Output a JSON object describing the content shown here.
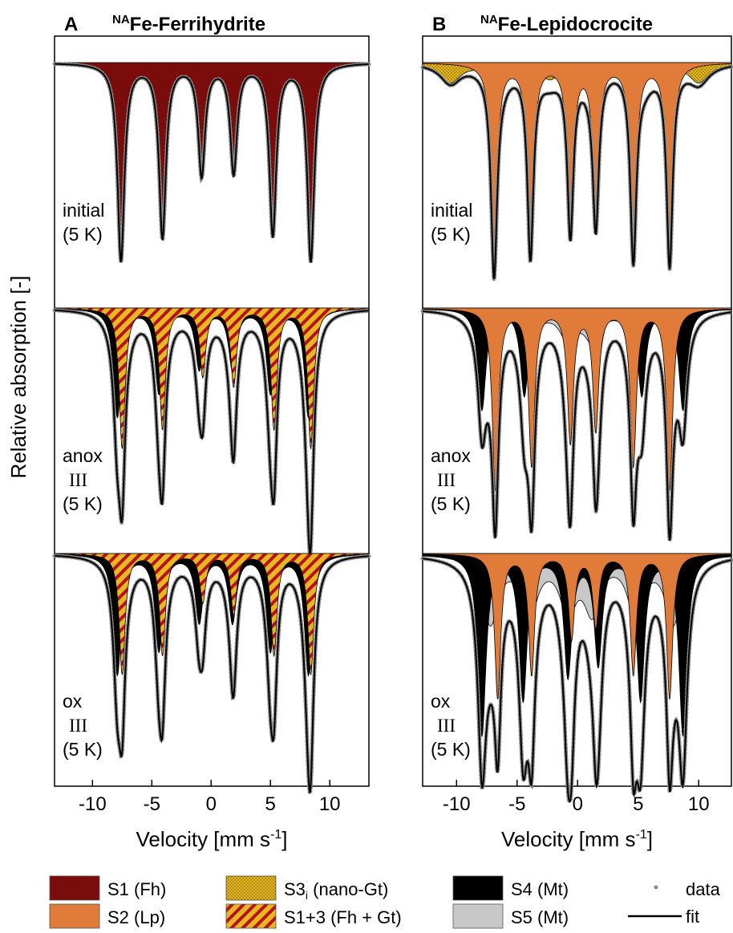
{
  "y_label": "Relative absorption [-]",
  "x_label": {
    "text": "Velocity [mm s",
    "sup": "-1",
    "end": "]"
  },
  "chart_data": [
    {
      "type": "area",
      "panel_label": "A",
      "title_sup": "NA",
      "title": "Fe-Ferrihydrite",
      "xlim": [
        -13.2,
        13.3
      ],
      "xticks": [
        -10,
        -5,
        0,
        5,
        10
      ],
      "spectra": [
        {
          "label": [
            "initial",
            "(5 K)"
          ],
          "components": [
            {
              "color": "#7b0c0c",
              "fill": "solid",
              "width": 0.35,
              "peaks": [
                -7.6,
                -4.1,
                -0.8,
                1.9,
                5.2,
                8.4
              ],
              "depths": [
                0.82,
                0.72,
                0.46,
                0.45,
                0.71,
                0.82
              ]
            }
          ]
        },
        {
          "label": [
            "anox",
            "III",
            "(5 K)"
          ],
          "components": [
            {
              "color": "#c8c8c8",
              "fill": "solid",
              "width": 0.9,
              "peaks": [
                -7.3,
                -4.0,
                -0.9,
                1.6,
                5.0,
                7.9
              ],
              "depths": [
                0.06,
                0.05,
                0.05,
                0.05,
                0.05,
                0.06
              ]
            },
            {
              "color": "#000000",
              "fill": "solid",
              "width": 0.4,
              "peaks": [
                -7.9,
                -4.4,
                -1.0,
                1.8,
                5.0,
                8.2
              ],
              "depths": [
                0.45,
                0.35,
                0.25,
                0.25,
                0.35,
                0.45
              ]
            },
            {
              "color": "#e8b820",
              "stripe_color": "#b5121b",
              "fill": "hatch",
              "width": 0.3,
              "peaks": [
                -7.5,
                -4.1,
                -0.7,
                1.9,
                5.3,
                8.4
              ],
              "depths": [
                0.58,
                0.5,
                0.28,
                0.32,
                0.5,
                0.58
              ]
            }
          ]
        },
        {
          "label": [
            "ox",
            "III",
            "(5 K)"
          ],
          "components": [
            {
              "color": "#c8c8c8",
              "fill": "solid",
              "width": 0.9,
              "peaks": [
                -7.3,
                -4.0,
                -0.9,
                1.6,
                5.0,
                7.9
              ],
              "depths": [
                0.06,
                0.05,
                0.05,
                0.05,
                0.05,
                0.06
              ]
            },
            {
              "color": "#000000",
              "fill": "solid",
              "width": 0.4,
              "peaks": [
                -7.9,
                -4.4,
                -1.0,
                1.8,
                5.0,
                8.2
              ],
              "depths": [
                0.5,
                0.4,
                0.28,
                0.28,
                0.4,
                0.5
              ]
            },
            {
              "color": "#e8b820",
              "stripe_color": "#b5121b",
              "fill": "hatch",
              "width": 0.3,
              "peaks": [
                -7.5,
                -4.1,
                -0.7,
                1.9,
                5.3,
                8.4
              ],
              "depths": [
                0.5,
                0.42,
                0.2,
                0.25,
                0.42,
                0.5
              ]
            }
          ]
        }
      ]
    },
    {
      "type": "area",
      "panel_label": "B",
      "title_sup": "NA",
      "title": "Fe-Lepidocrocite",
      "xlim": [
        -12.8,
        12.7
      ],
      "xticks": [
        -10,
        -5,
        0,
        5,
        10
      ],
      "spectra": [
        {
          "label": [
            "initial",
            "(5 K)"
          ],
          "components": [
            {
              "color": "#e8b820",
              "stripe_color": "#5a4500",
              "fill": "dots",
              "width": 1.0,
              "peaks": [
                -10.5,
                -6.5,
                -2.3,
                1.0,
                5.5,
                10.0
              ],
              "depths": [
                0.08,
                0.07,
                0.06,
                0.06,
                0.07,
                0.08
              ]
            },
            {
              "color": "#e07b39",
              "fill": "solid",
              "width": 0.3,
              "peaks": [
                -6.9,
                -3.9,
                -0.6,
                1.5,
                4.6,
                7.6
              ],
              "depths": [
                0.82,
                0.78,
                0.68,
                0.63,
                0.78,
                0.82
              ]
            }
          ]
        },
        {
          "label": [
            "anox",
            "III",
            "(5 K)"
          ],
          "components": [
            {
              "color": "#c8c8c8",
              "fill": "solid",
              "width": 0.8,
              "peaks": [
                -7.2,
                -4.0,
                -0.8,
                1.2,
                4.8,
                7.9
              ],
              "depths": [
                0.15,
                0.13,
                0.12,
                0.12,
                0.13,
                0.15
              ]
            },
            {
              "color": "#000000",
              "fill": "solid",
              "width": 0.4,
              "peaks": [
                -7.9,
                -4.4,
                -0.8,
                1.7,
                5.3,
                8.7
              ],
              "depths": [
                0.42,
                0.36,
                0.22,
                0.22,
                0.36,
                0.42
              ]
            },
            {
              "color": "#e07b39",
              "fill": "solid",
              "width": 0.3,
              "peaks": [
                -6.8,
                -3.8,
                -0.6,
                1.5,
                4.6,
                7.6
              ],
              "depths": [
                0.75,
                0.65,
                0.55,
                0.5,
                0.65,
                0.75
              ]
            }
          ]
        },
        {
          "label": [
            "ox",
            "III",
            "(5 K)"
          ],
          "components": [
            {
              "color": "#c8c8c8",
              "fill": "solid",
              "width": 0.8,
              "peaks": [
                -7.2,
                -4.0,
                -0.8,
                1.2,
                4.8,
                7.9
              ],
              "depths": [
                0.28,
                0.25,
                0.22,
                0.22,
                0.25,
                0.28
              ]
            },
            {
              "color": "#000000",
              "fill": "solid",
              "width": 0.4,
              "peaks": [
                -7.9,
                -4.5,
                -0.8,
                1.7,
                5.2,
                8.7
              ],
              "depths": [
                0.75,
                0.6,
                0.5,
                0.45,
                0.6,
                0.75
              ]
            },
            {
              "color": "#e07b39",
              "fill": "solid",
              "width": 0.3,
              "peaks": [
                -6.6,
                -3.8,
                -0.5,
                1.5,
                4.6,
                7.6
              ],
              "depths": [
                0.6,
                0.5,
                0.35,
                0.3,
                0.5,
                0.6
              ]
            }
          ]
        }
      ]
    }
  ],
  "legend": {
    "entries": [
      {
        "label": "S1 (Fh)",
        "color": "#7b0c0c",
        "fill": "solid"
      },
      {
        "label": "S2 (Lp)",
        "color": "#e07b39",
        "fill": "solid"
      },
      {
        "label": "S3",
        "sub": "i",
        "suffix": " (nano-Gt)",
        "color": "#e8b820",
        "stripe_color": "#5a4500",
        "fill": "dots"
      },
      {
        "label": "S1+3 (Fh + Gt)",
        "color": "#e8b820",
        "stripe_color": "#b5121b",
        "fill": "hatch"
      },
      {
        "label": "S4 (Mt)",
        "color": "#000000",
        "fill": "solid"
      },
      {
        "label": "S5 (Mt)",
        "color": "#c8c8c8",
        "fill": "solid"
      }
    ],
    "data": "data",
    "data_color": "#8c8c8c",
    "fit": "fit"
  }
}
